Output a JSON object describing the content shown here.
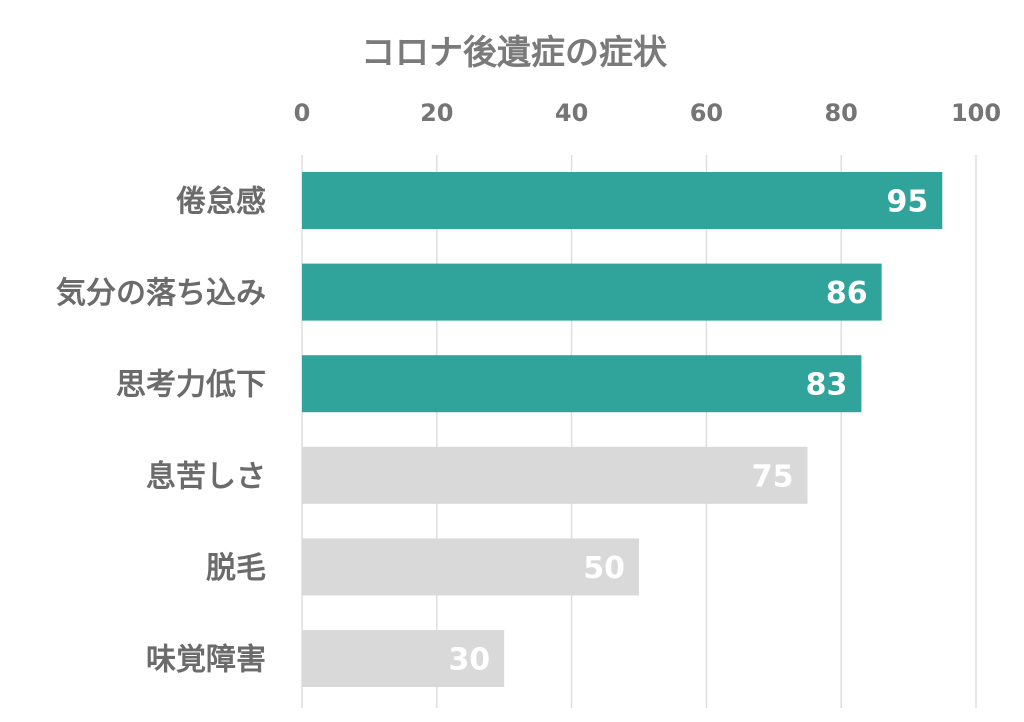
{
  "chart_data": {
    "type": "bar",
    "orientation": "horizontal",
    "title": "コロナ後遺症の症状",
    "categories": [
      "倦怠感",
      "気分の落ち込み",
      "思考力低下",
      "息苦しさ",
      "脱毛",
      "味覚障害"
    ],
    "values": [
      95,
      86,
      83,
      75,
      50,
      30
    ],
    "highlighted": [
      true,
      true,
      true,
      false,
      false,
      false
    ],
    "xlim": [
      0,
      100
    ],
    "xticks": [
      "0",
      "20",
      "40",
      "60",
      "80",
      "100"
    ],
    "xaxis_position": "top",
    "grid": true,
    "data_labels": true,
    "colors": {
      "highlight": "#30a49b",
      "muted": "#d9d9d9",
      "label": "#ffffff"
    }
  }
}
